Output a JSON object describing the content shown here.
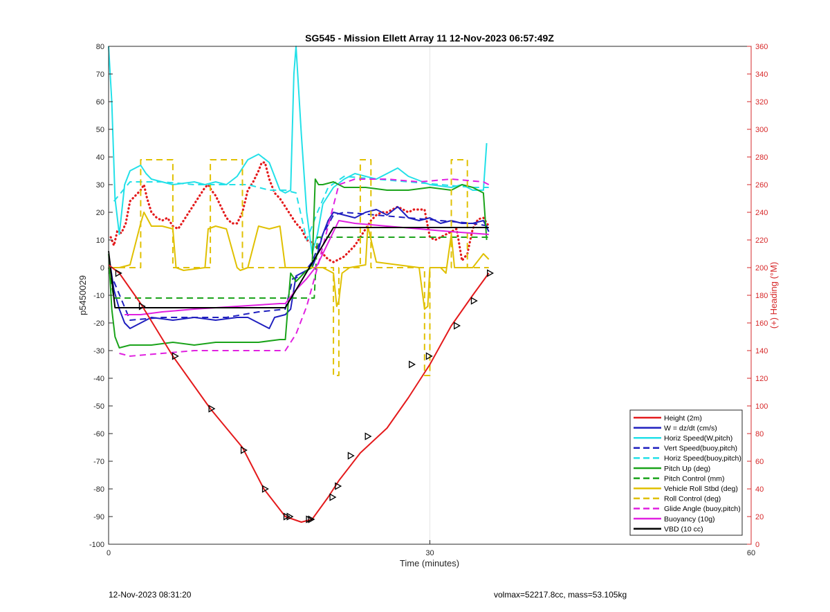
{
  "footer": {
    "left": "12-Nov-2023 08:31:20",
    "right": "volmax=52217.8cc, mass=53.105kg"
  },
  "chart_data": {
    "type": "line",
    "title": "SG545 - Mission Ellett Array 11 12-Nov-2023 06:57:49Z",
    "xlabel": "Time (minutes)",
    "ylabel": "p5450029",
    "ylabel_right": "(+) Heading (°M)",
    "xlim": [
      0,
      60
    ],
    "ylim": [
      -100,
      80
    ],
    "ylim_right": [
      0,
      360
    ],
    "xticks": [
      0,
      30,
      60
    ],
    "yticks": [
      -100,
      -90,
      -80,
      -70,
      -60,
      -50,
      -40,
      -30,
      -20,
      -10,
      0,
      10,
      20,
      30,
      40,
      50,
      60,
      70,
      80
    ],
    "yticks_right": [
      0,
      20,
      40,
      60,
      80,
      100,
      120,
      140,
      160,
      180,
      200,
      220,
      240,
      260,
      280,
      300,
      320,
      340,
      360
    ],
    "grid": "x-only",
    "legend_position": "bottom-right",
    "series": [
      {
        "name": "Height (2m)",
        "color": "#e41a1c",
        "style": "solid",
        "x": [
          0,
          1,
          3,
          6,
          9.5,
          12.5,
          14.5,
          16.5,
          18,
          19,
          20.5,
          21.5,
          23.5,
          26,
          28,
          30,
          32,
          34,
          35.5
        ],
        "y": [
          1,
          -2,
          -13,
          -32,
          -51,
          -65,
          -80,
          -90,
          -92,
          -91,
          -83,
          -77,
          -67,
          -58,
          -47,
          -35,
          -21,
          -10,
          -2
        ]
      },
      {
        "name": "W = dz/dt (cm/s)",
        "color": "#1f1fbf",
        "style": "solid",
        "x": [
          0,
          0.5,
          1,
          1.5,
          2,
          3,
          4,
          6,
          8,
          10,
          12,
          13,
          14,
          15,
          15.5,
          16.5,
          17,
          17.5,
          18,
          19,
          19.5,
          20,
          20.5,
          21,
          22,
          23,
          24,
          25,
          26,
          27,
          28,
          29,
          30,
          31,
          32,
          33,
          34,
          35,
          35.5
        ],
        "y": [
          5,
          -8,
          -15,
          -20,
          -22,
          -20,
          -18,
          -19,
          -18,
          -19,
          -18,
          -18,
          -20,
          -22,
          -18,
          -17,
          -15,
          -3,
          -2,
          0,
          5,
          12,
          17,
          20,
          19,
          18,
          20,
          21,
          19,
          22,
          18,
          17,
          18,
          16,
          17,
          16,
          16,
          17,
          13
        ]
      },
      {
        "name": "Horiz Speed(W,pitch)",
        "color": "#22e0e8",
        "style": "solid",
        "x": [
          0,
          0.3,
          0.6,
          1,
          1.5,
          2,
          3,
          3.5,
          4,
          5,
          6,
          8,
          9,
          10,
          11,
          12,
          13,
          14,
          15,
          15.5,
          16,
          16.5,
          17,
          17.3,
          17.5,
          18,
          18.5,
          19,
          19.5,
          20,
          21,
          22,
          23,
          24,
          25,
          26,
          27,
          28,
          30,
          32,
          33,
          34,
          35,
          35.3
        ],
        "y": [
          80,
          60,
          25,
          12,
          30,
          35,
          37,
          34,
          32,
          31,
          30,
          31,
          30,
          31,
          30,
          33,
          39,
          41,
          38,
          33,
          28,
          27,
          28,
          70,
          80,
          48,
          20,
          5,
          12,
          23,
          29,
          32,
          34,
          33,
          32,
          34,
          36,
          33,
          30,
          29,
          30,
          28,
          28,
          45
        ]
      },
      {
        "name": "Vert Speed(buoy,pitch)",
        "color": "#1f1fbf",
        "style": "dashed",
        "x": [
          0.5,
          2,
          5,
          8,
          11,
          14,
          16.5,
          17.2,
          18,
          19,
          20,
          21,
          22,
          25,
          28,
          31,
          34,
          35.5
        ],
        "y": [
          -5,
          -19,
          -18,
          -18,
          -18,
          -16,
          -15,
          -4,
          -3,
          2,
          12,
          19,
          20,
          19,
          18,
          17,
          16,
          15
        ]
      },
      {
        "name": "Horiz Speed(buoy,pitch)",
        "color": "#22e0e8",
        "style": "dashed",
        "x": [
          0.5,
          2,
          5,
          8,
          11,
          13,
          15,
          16.5,
          17.5,
          18.5,
          19.5,
          20.5,
          22,
          25,
          28,
          31,
          34,
          35.5
        ],
        "y": [
          24,
          31,
          31,
          30,
          30,
          30,
          28,
          28,
          27,
          10,
          20,
          29,
          33,
          32,
          31,
          30,
          29,
          29
        ]
      },
      {
        "name": "Pitch Up (deg)",
        "color": "#1aa31a",
        "style": "solid",
        "x": [
          0,
          0.3,
          0.6,
          1,
          2,
          4,
          6,
          8,
          10,
          12,
          14,
          16,
          16.5,
          17,
          17.5,
          18,
          18.5,
          19,
          19.3,
          19.6,
          20,
          21,
          22,
          24,
          26,
          28,
          30,
          32,
          33,
          34,
          35,
          35.3
        ],
        "y": [
          5,
          -15,
          -25,
          -29,
          -28,
          -28,
          -27,
          -28,
          -27,
          -27,
          -27,
          -26,
          -26,
          -2,
          -5,
          -3,
          -1,
          0,
          32,
          30,
          30,
          31,
          29,
          29,
          28,
          28,
          29,
          28,
          30,
          29,
          27,
          10
        ]
      },
      {
        "name": "Pitch Control (mm)",
        "color": "#1aa31a",
        "style": "dashed",
        "x": [
          0,
          0.5,
          1,
          17,
          18,
          19.2,
          19.5,
          35.5
        ],
        "y": [
          0,
          -11,
          -11,
          -11,
          -11,
          -11,
          11,
          11
        ]
      },
      {
        "name": "Vehicle Roll Stbd (deg)",
        "color": "#e0c000",
        "style": "solid",
        "x": [
          0,
          1,
          2,
          3,
          3.3,
          4,
          5,
          6,
          6.3,
          7,
          9,
          9.3,
          10,
          11,
          12,
          12.3,
          13,
          14,
          15,
          16,
          16.5,
          17,
          19,
          20,
          21,
          21.3,
          21.5,
          21.8,
          22.5,
          24,
          24.2,
          25,
          27,
          29,
          29.5,
          29.8,
          30,
          31,
          31.5,
          32,
          32.3,
          34,
          35,
          35.5
        ],
        "y": [
          0,
          0,
          1,
          16,
          20,
          15,
          15,
          14,
          0,
          -1,
          0,
          14,
          15,
          14,
          0,
          -1,
          0,
          15,
          14,
          15,
          0,
          0,
          0,
          0,
          -2,
          -14,
          -12,
          -2,
          0,
          1,
          15,
          2,
          1,
          0,
          -15,
          -14,
          0,
          0,
          -2,
          12,
          0,
          0,
          5,
          3
        ]
      },
      {
        "name": "Roll Control (deg)",
        "color": "#e0c000",
        "style": "dashed",
        "x": [
          0,
          3,
          3,
          6,
          6,
          9.5,
          9.5,
          12.5,
          12.5,
          16.5,
          16.5,
          21,
          21,
          21.5,
          21.5,
          23.5,
          23.5,
          24.5,
          24.5,
          29.5,
          29.5,
          30,
          30,
          32,
          32,
          33.5,
          33.5,
          35.5
        ],
        "y": [
          0,
          0,
          39,
          39,
          0,
          0,
          39,
          39,
          0,
          0,
          0,
          0,
          -39,
          -39,
          0,
          0,
          39,
          39,
          0,
          0,
          -39,
          -39,
          0,
          0,
          39,
          39,
          0,
          0
        ]
      },
      {
        "name": "Glide Angle (buoy,pitch)",
        "color": "#e020e0",
        "style": "dashed",
        "x": [
          1,
          2,
          5,
          8,
          11,
          14,
          16.5,
          17.5,
          18.5,
          19.5,
          20.5,
          21.5,
          23,
          26,
          29,
          32,
          35,
          35.5
        ],
        "y": [
          -31,
          -32,
          -31,
          -30,
          -30,
          -30,
          -30,
          -24,
          -14,
          0,
          15,
          30,
          32,
          32,
          31,
          32,
          31,
          30
        ]
      },
      {
        "name": "Buoyancy (10g)",
        "color": "#e020e0",
        "style": "solid",
        "x": [
          1.5,
          3,
          5,
          8,
          12,
          16,
          16.5,
          17.5,
          18.5,
          19.5,
          20.5,
          21.5,
          23,
          26,
          29,
          32,
          35.5
        ],
        "y": [
          -17,
          -17,
          -16,
          -15,
          -14,
          -13,
          -13,
          -8,
          -4,
          1,
          9,
          17,
          16,
          15,
          14,
          13,
          12
        ]
      },
      {
        "name": "VBD (10 cc)",
        "color": "#000000",
        "style": "solid",
        "x": [
          0,
          0.6,
          16.5,
          21,
          35.5
        ],
        "y": [
          6,
          -14.5,
          -14.5,
          14.5,
          14.5
        ]
      }
    ],
    "heading_series": {
      "axis": "right",
      "color": "#e41a1c",
      "style": "dotted",
      "x": [
        0.2,
        0.5,
        0.8,
        1.2,
        1.6,
        2,
        2.5,
        3,
        3.3,
        3.6,
        4,
        4.5,
        5,
        5.5,
        6,
        6.5,
        7,
        7.5,
        8,
        8.5,
        9,
        9.3,
        9.6,
        10,
        10.5,
        11,
        11.5,
        12,
        12.5,
        13,
        13.5,
        14,
        14.3,
        14.6,
        15,
        15.5,
        16,
        16.5,
        17,
        17.5,
        18,
        18.5,
        19,
        19.5,
        20,
        20.5,
        21,
        21.5,
        22,
        22.5,
        23,
        23.5,
        24,
        24.5,
        25,
        25.5,
        26,
        26.5,
        27,
        27.5,
        28,
        28.5,
        29,
        29.5,
        30,
        30.5,
        31,
        31.5,
        32,
        32.5,
        33,
        33.5,
        34,
        34.5,
        35,
        35.5
      ],
      "y": [
        222,
        216,
        226,
        225,
        232,
        248,
        252,
        256,
        260,
        250,
        240,
        236,
        234,
        236,
        230,
        228,
        234,
        240,
        246,
        252,
        258,
        260,
        256,
        252,
        244,
        236,
        232,
        232,
        240,
        256,
        262,
        270,
        276,
        276,
        264,
        254,
        250,
        244,
        238,
        232,
        228,
        220,
        218,
        214,
        210,
        206,
        204,
        206,
        208,
        212,
        216,
        222,
        228,
        234,
        238,
        240,
        240,
        242,
        244,
        242,
        240,
        242,
        242,
        242,
        222,
        220,
        222,
        224,
        226,
        228,
        205,
        210,
        228,
        235,
        236,
        230
      ]
    },
    "height_markers": {
      "x": [
        0.9,
        3.1,
        6.2,
        9.6,
        12.6,
        14.6,
        16.6,
        16.9,
        18.7,
        18.9,
        20.9,
        21.4,
        22.6,
        24.2,
        28.3,
        29.9,
        32.5,
        34.1,
        35.6
      ],
      "y": [
        -2,
        -14,
        -32,
        -51,
        -66,
        -80,
        -90,
        -90,
        -91,
        -91,
        -83,
        -79,
        -68,
        -61,
        -35,
        -32,
        -21,
        -12,
        -2
      ]
    }
  }
}
